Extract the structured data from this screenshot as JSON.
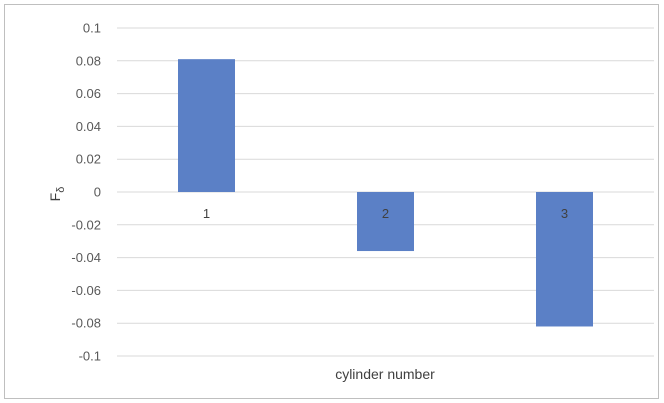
{
  "chart_data": {
    "type": "bar",
    "categories": [
      "1",
      "2",
      "3"
    ],
    "values": [
      0.081,
      -0.036,
      -0.082
    ],
    "xlabel": "cylinder number",
    "ylabel": "F",
    "ylabel_subscript": "δ",
    "ylim": [
      -0.1,
      0.1
    ],
    "yticks": [
      "0.1",
      "0.08",
      "0.06",
      "0.04",
      "0.02",
      "0",
      "-0.02",
      "-0.04",
      "-0.06",
      "-0.08",
      "-0.1"
    ],
    "grid": true,
    "legend": "none",
    "colors": {
      "bar": "#5b80c6",
      "grid": "#d9d9d9"
    }
  }
}
